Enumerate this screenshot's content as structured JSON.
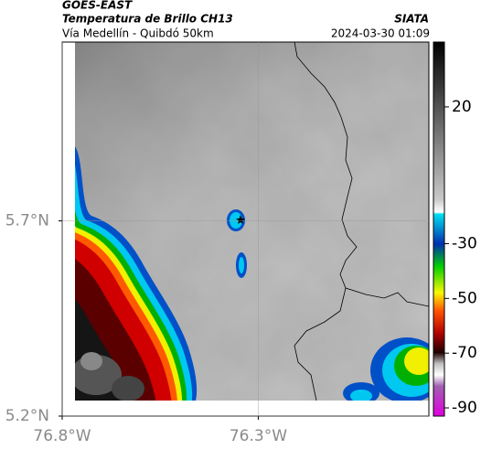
{
  "header": {
    "title": "GOES-EAST",
    "subtitle": "Temperatura de Brillo CH13",
    "route": "Vía Medellín - Quibdó 50km",
    "source": "SIATA",
    "timestamp": "2024-03-30 01:09"
  },
  "map": {
    "xlim": [
      -76.8,
      -75.865
    ],
    "ylim": [
      5.2,
      6.158
    ],
    "xticks": [
      {
        "value": -76.8,
        "label": "76.8°W"
      },
      {
        "value": -76.3,
        "label": "76.3°W"
      }
    ],
    "yticks": [
      {
        "value": 5.2,
        "label": "5.2°N"
      },
      {
        "value": 5.7,
        "label": "5.7°N"
      }
    ],
    "grid": true
  },
  "colorbar": {
    "lim": [
      -93,
      43.7
    ],
    "ticks": [
      20,
      -30,
      -50,
      -70,
      -90
    ]
  }
}
